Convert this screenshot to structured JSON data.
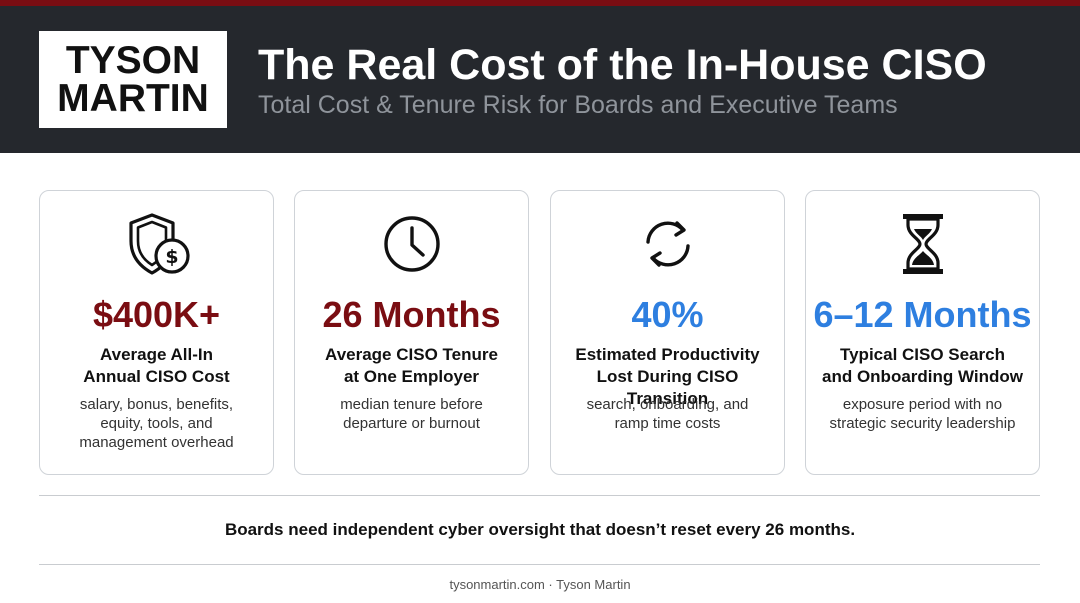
{
  "header": {
    "logo_line1": "TYSON",
    "logo_line2": "MARTIN",
    "title": "The Real Cost of the In-House CISO",
    "subtitle": "Total Cost & Tenure Risk for Boards and Executive Teams"
  },
  "colors": {
    "accent_dark_red": "#7a0d12",
    "accent_blue": "#2e7fe0",
    "header_bg": "#25282d"
  },
  "cards": [
    {
      "icon": "shield-dollar-icon",
      "value": "$400K+",
      "label_line1": "Average All-In",
      "label_line2": "Annual CISO Cost",
      "desc_line1": "salary, bonus, benefits,",
      "desc_line2": "equity, tools, and",
      "desc_line3": "management overhead"
    },
    {
      "icon": "clock-icon",
      "value": "26 Months",
      "label_line1": "Average CISO Tenure",
      "label_line2": "at One Employer",
      "desc_line1": "median tenure before",
      "desc_line2": "departure or burnout"
    },
    {
      "icon": "refresh-cycle-icon",
      "value": "40%",
      "label_line1": "Estimated Productivity",
      "label_line2": "Lost During CISO Transition",
      "desc_line1": "search, onboarding, and",
      "desc_line2": "ramp time costs"
    },
    {
      "icon": "hourglass-icon",
      "value": "6–12 Months",
      "label_line1": "Typical CISO Search",
      "label_line2": "and Onboarding Window",
      "desc_line1": "exposure period with no",
      "desc_line2": "strategic security leadership"
    }
  ],
  "tagline": "Boards need independent cyber oversight that doesn’t reset every 26 months.",
  "footer": "tysonmartin.com · Tyson Martin"
}
